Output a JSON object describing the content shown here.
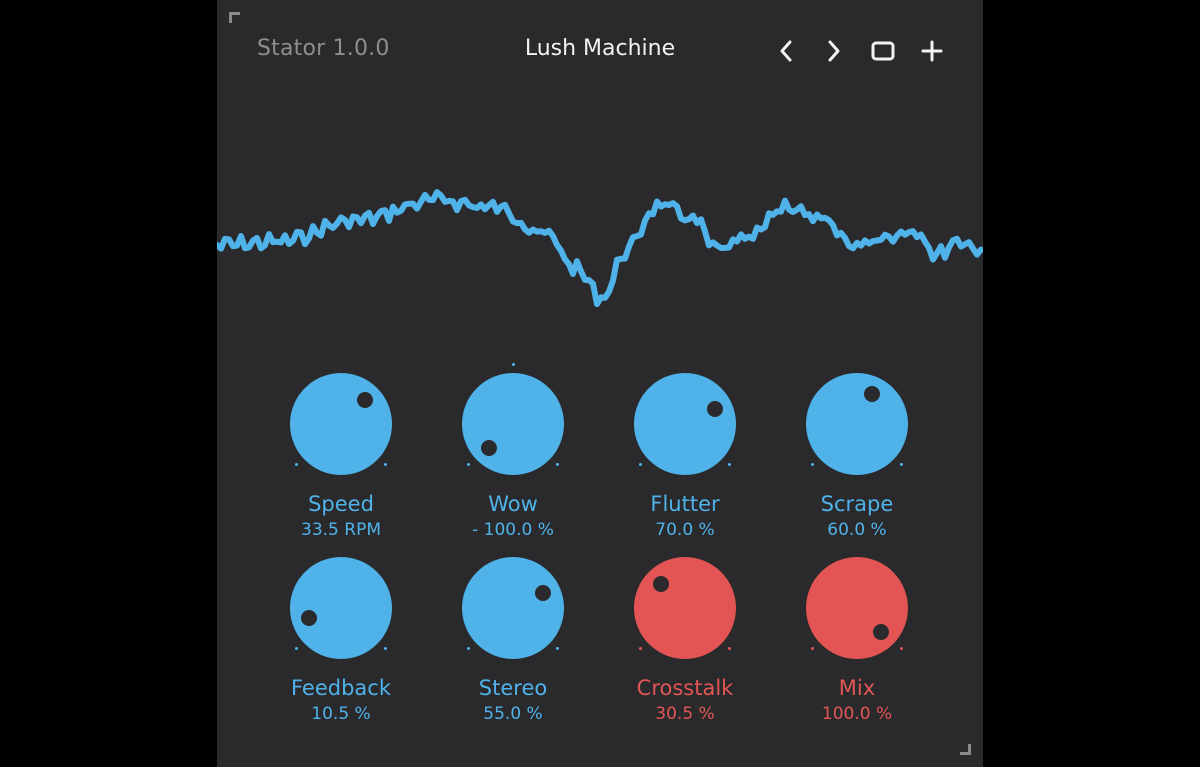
{
  "header": {
    "app_version": "Stator 1.0.0",
    "preset_name": "Lush Machine",
    "prev_icon": "chevron-left-icon",
    "next_icon": "chevron-right-icon",
    "save_icon": "square-icon",
    "add_icon": "plus-icon"
  },
  "colors": {
    "background": "#2a2a2c",
    "accent_blue": "#4fb3ea",
    "accent_red": "#e35555",
    "text_gray": "#8e8e90",
    "text_white": "#f2f2f2"
  },
  "knobs": [
    {
      "label": "Speed",
      "value": "33.5 RPM",
      "color": "blue",
      "pointer_angle": 45
    },
    {
      "label": "Wow",
      "value": "- 100.0 %",
      "color": "blue",
      "pointer_angle": -135,
      "center_tick": true
    },
    {
      "label": "Flutter",
      "value": "70.0 %",
      "color": "blue",
      "pointer_angle": 63
    },
    {
      "label": "Scrape",
      "value": "60.0 %",
      "color": "blue",
      "pointer_angle": 27
    },
    {
      "label": "Feedback",
      "value": "10.5 %",
      "color": "blue",
      "pointer_angle": -107
    },
    {
      "label": "Stereo",
      "value": "55.0 %",
      "color": "blue",
      "pointer_angle": 63
    },
    {
      "label": "Crosstalk",
      "value": "30.5 %",
      "color": "red",
      "pointer_angle": -45
    },
    {
      "label": "Mix",
      "value": "100.0 %",
      "color": "red",
      "pointer_angle": 135
    }
  ]
}
